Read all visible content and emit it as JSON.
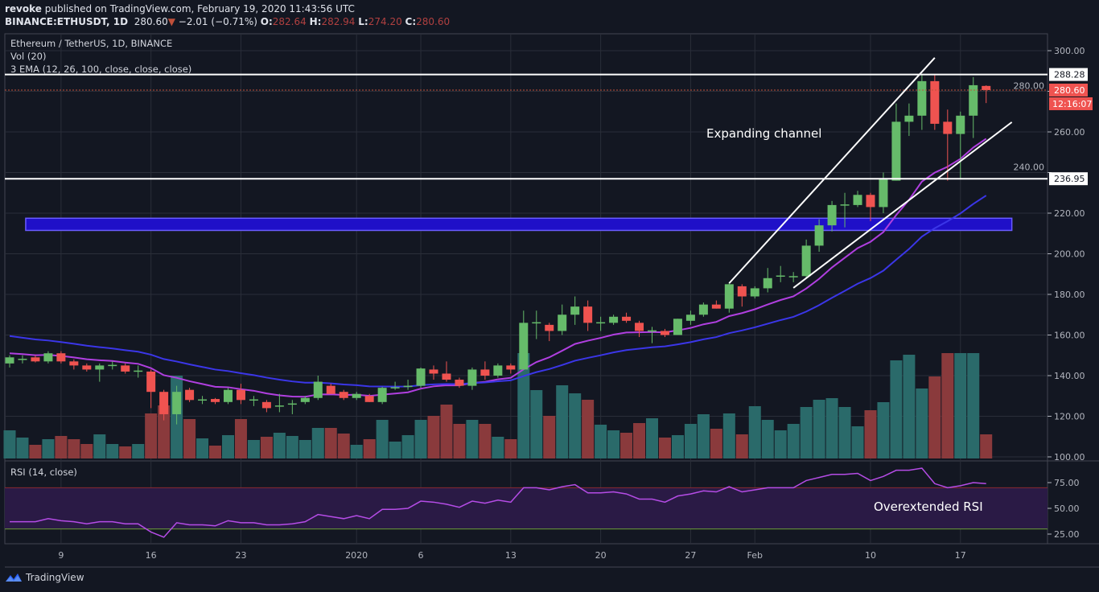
{
  "header": {
    "author": "revoke",
    "published": "published on TradingView.com, February 19, 2020 11:43:56 UTC",
    "symbol": "BINANCE:ETHUSDT, 1D",
    "last": "280.60",
    "change": "−2.01 (−0.71%)",
    "o_label": "O:",
    "o": "282.64",
    "h_label": "H:",
    "h": "282.94",
    "l_label": "L:",
    "l": "274.20",
    "c_label": "C:",
    "c": "280.60"
  },
  "legend": {
    "title": "Ethereum / TetherUS, 1D, BINANCE",
    "volume": "Vol (20)",
    "ema": "3 EMA (12, 26, 100, close, close, close)",
    "rsi": "RSI (14, close)"
  },
  "annotations": {
    "channel": "Expanding channel",
    "rsi": "Overextended RSI"
  },
  "price_labels": {
    "resistance": "288.28",
    "support": "236.95",
    "last": "280.60",
    "countdown": "12:16:07"
  },
  "footer": {
    "brand": "TradingView",
    "logo_icon": "tradingview-logo-icon"
  },
  "colors": {
    "background": "#131722",
    "up": "#66bb6a",
    "down": "#ef5350",
    "ema_fast": "#b03fe0",
    "ema_slow": "#3b36e8",
    "zone": "#1f10c8",
    "rsi_line": "#b54ce6"
  },
  "chart_data": [
    {
      "type": "candlestick",
      "title": "Ethereum / TetherUS, 1D, BINANCE",
      "ylim": [
        100,
        300
      ],
      "y_ticks": [
        "300.00",
        "280.00",
        "260.00",
        "240.00",
        "220.00",
        "200.00",
        "180.00",
        "160.00",
        "140.00",
        "120.00",
        "100.00"
      ],
      "x_ticks": [
        {
          "label": "9",
          "date": "2019-12-09"
        },
        {
          "label": "16",
          "date": "2019-12-16"
        },
        {
          "label": "23",
          "date": "2019-12-23"
        },
        {
          "label": "2020",
          "date": "2020-01-01"
        },
        {
          "label": "6",
          "date": "2020-01-06"
        },
        {
          "label": "13",
          "date": "2020-01-13"
        },
        {
          "label": "20",
          "date": "2020-01-20"
        },
        {
          "label": "27",
          "date": "2020-01-27"
        },
        {
          "label": "Feb",
          "date": "2020-02-01"
        },
        {
          "label": "10",
          "date": "2020-02-10"
        },
        {
          "label": "17",
          "date": "2020-02-17"
        }
      ],
      "grid": true,
      "candles_columns": [
        "date",
        "open",
        "high",
        "low",
        "close",
        "volume_relative"
      ],
      "candles": [
        [
          "2019-12-05",
          146,
          150,
          144,
          149,
          35
        ],
        [
          "2019-12-06",
          148,
          150,
          146,
          148.3,
          26
        ],
        [
          "2019-12-07",
          149,
          150,
          146.5,
          147,
          17
        ],
        [
          "2019-12-08",
          147,
          152,
          146,
          151,
          24
        ],
        [
          "2019-12-09",
          151,
          152,
          146,
          147,
          28
        ],
        [
          "2019-12-10",
          147,
          148,
          143,
          145,
          24
        ],
        [
          "2019-12-11",
          145,
          146,
          142,
          143,
          18
        ],
        [
          "2019-12-12",
          143,
          146,
          137,
          145,
          30
        ],
        [
          "2019-12-13",
          145,
          147,
          143,
          145.3,
          18
        ],
        [
          "2019-12-14",
          145,
          146,
          141,
          142,
          15
        ],
        [
          "2019-12-15",
          142,
          145,
          139,
          142.5,
          18
        ],
        [
          "2019-12-16",
          142,
          143,
          124,
          132,
          56
        ],
        [
          "2019-12-17",
          132,
          133,
          118,
          121,
          66
        ],
        [
          "2019-12-18",
          121,
          135,
          116,
          132,
          103
        ],
        [
          "2019-12-19",
          133,
          134,
          127,
          128,
          49
        ],
        [
          "2019-12-20",
          128,
          130,
          126,
          128.3,
          25
        ],
        [
          "2019-12-21",
          128.5,
          129,
          126,
          127,
          16
        ],
        [
          "2019-12-22",
          127,
          134,
          126,
          133,
          29
        ],
        [
          "2019-12-23",
          133,
          136,
          126,
          128,
          49
        ],
        [
          "2019-12-24",
          128,
          130,
          125,
          128.3,
          23
        ],
        [
          "2019-12-25",
          127,
          128,
          122,
          124,
          27
        ],
        [
          "2019-12-26",
          125,
          131,
          122,
          125.3,
          32
        ],
        [
          "2019-12-27",
          126,
          128,
          121,
          126.3,
          28
        ],
        [
          "2019-12-28",
          127,
          130,
          126,
          129,
          23
        ],
        [
          "2019-12-29",
          129,
          140,
          128,
          137,
          38
        ],
        [
          "2019-12-30",
          135,
          136,
          131,
          131,
          38
        ],
        [
          "2019-12-31",
          132,
          133,
          128,
          129,
          31
        ],
        [
          "2020-01-01",
          129,
          132,
          128,
          131,
          17
        ],
        [
          "2020-01-02",
          130,
          131,
          127,
          127,
          24
        ],
        [
          "2020-01-03",
          127,
          134.5,
          126,
          134,
          48
        ],
        [
          "2020-01-04",
          134,
          137,
          133,
          134.3,
          21
        ],
        [
          "2020-01-05",
          134.5,
          138,
          133,
          135,
          29
        ],
        [
          "2020-01-06",
          135,
          144,
          134,
          143.5,
          48
        ],
        [
          "2020-01-07",
          143,
          145,
          138,
          141,
          53
        ],
        [
          "2020-01-08",
          141,
          147,
          137,
          138,
          67
        ],
        [
          "2020-01-09",
          138,
          139,
          134,
          135,
          43
        ],
        [
          "2020-01-10",
          135,
          144,
          133,
          143,
          48
        ],
        [
          "2020-01-11",
          143,
          147,
          138,
          140,
          43
        ],
        [
          "2020-01-12",
          140,
          146,
          139,
          145,
          27
        ],
        [
          "2020-01-13",
          145,
          146,
          141,
          143,
          24
        ],
        [
          "2020-01-14",
          143,
          172,
          143,
          166,
          131
        ],
        [
          "2020-01-15",
          166,
          172,
          158,
          166.3,
          85
        ],
        [
          "2020-01-16",
          165,
          166,
          157,
          162,
          53
        ],
        [
          "2020-01-17",
          162,
          175,
          160,
          170,
          91
        ],
        [
          "2020-01-18",
          170,
          179,
          165,
          174,
          81
        ],
        [
          "2020-01-19",
          174,
          177,
          162,
          166,
          73
        ],
        [
          "2020-01-20",
          166,
          169,
          162,
          166.3,
          42
        ],
        [
          "2020-01-21",
          166,
          170,
          165,
          169,
          35
        ],
        [
          "2020-01-22",
          169,
          171,
          166,
          167,
          32
        ],
        [
          "2020-01-23",
          166,
          167,
          159,
          162,
          44
        ],
        [
          "2020-01-24",
          162,
          164,
          156,
          162.3,
          50
        ],
        [
          "2020-01-25",
          162,
          163,
          159,
          160,
          26
        ],
        [
          "2020-01-26",
          160,
          168,
          160,
          168,
          29
        ],
        [
          "2020-01-27",
          167,
          172,
          165,
          170,
          43
        ],
        [
          "2020-01-28",
          170,
          176,
          169,
          175,
          55
        ],
        [
          "2020-01-29",
          175,
          177,
          173,
          173,
          37
        ],
        [
          "2020-01-30",
          173,
          186,
          171,
          185,
          56
        ],
        [
          "2020-01-31",
          184,
          185,
          174,
          179,
          30
        ],
        [
          "2020-02-01",
          179,
          184,
          178,
          183,
          65
        ],
        [
          "2020-02-02",
          183,
          193,
          181,
          188,
          48
        ],
        [
          "2020-02-03",
          189,
          194,
          186,
          189.3,
          35
        ],
        [
          "2020-02-04",
          189,
          191,
          186,
          189,
          43
        ],
        [
          "2020-02-05",
          189,
          207,
          188,
          204,
          64
        ],
        [
          "2020-02-06",
          204,
          217,
          201,
          214,
          73
        ],
        [
          "2020-02-07",
          214,
          226,
          211,
          224,
          75
        ],
        [
          "2020-02-08",
          224,
          230,
          213,
          224.3,
          64
        ],
        [
          "2020-02-09",
          224,
          231,
          223,
          229,
          40
        ],
        [
          "2020-02-10",
          229,
          230,
          216,
          223,
          60
        ],
        [
          "2020-02-11",
          223,
          240,
          220,
          237,
          70
        ],
        [
          "2020-02-12",
          236,
          274,
          236,
          265,
          122
        ],
        [
          "2020-02-13",
          265,
          274,
          258,
          268,
          129
        ],
        [
          "2020-02-14",
          268,
          288,
          261,
          285,
          87
        ],
        [
          "2020-02-15",
          285,
          288,
          261,
          264,
          102
        ],
        [
          "2020-02-16",
          265,
          271,
          236,
          259,
          131
        ],
        [
          "2020-02-17",
          259,
          270,
          237,
          268,
          131
        ],
        [
          "2020-02-18",
          268,
          287,
          257,
          283,
          131
        ],
        [
          "2020-02-19",
          282.64,
          282.94,
          274.2,
          280.6,
          30
        ]
      ],
      "ema_series": [
        {
          "period": 12,
          "start_value": 151
        },
        {
          "period": 26,
          "start_value": 159.5
        }
      ],
      "horizontal_levels": [
        288.28,
        236.95
      ],
      "zone": {
        "from_date": "2019-12-07",
        "to_date": "2020-02-21",
        "low": 211.5,
        "high": 217.5
      },
      "trendlines": [
        {
          "from": [
            "2020-01-30",
            185.5
          ],
          "to": [
            "2020-02-15",
            296.5
          ]
        },
        {
          "from": [
            "2020-02-04",
            183.2
          ],
          "to": [
            "2020-02-21",
            264.8
          ]
        }
      ]
    },
    {
      "type": "line",
      "title": "RSI (14, close)",
      "ylim": [
        17,
        95
      ],
      "y_ticks": [
        "75.00",
        "50.00",
        "25.00"
      ],
      "band": [
        30,
        70
      ],
      "values": [
        37,
        37,
        37,
        40,
        38,
        37,
        35,
        37,
        37,
        35,
        35,
        27,
        22,
        36,
        34,
        34,
        33,
        38,
        36,
        36,
        34,
        34,
        35,
        37,
        44,
        42,
        40,
        43,
        40,
        49,
        49,
        50,
        57,
        56,
        54,
        51,
        57,
        55,
        58,
        56,
        70,
        70,
        68,
        71,
        73,
        65,
        65,
        66,
        64,
        59,
        59,
        56,
        62,
        64,
        67,
        66,
        71,
        66,
        68,
        70,
        70,
        70,
        77,
        80,
        83,
        83,
        84,
        77,
        81,
        87,
        87,
        89,
        74,
        70,
        72,
        75,
        74
      ]
    }
  ]
}
